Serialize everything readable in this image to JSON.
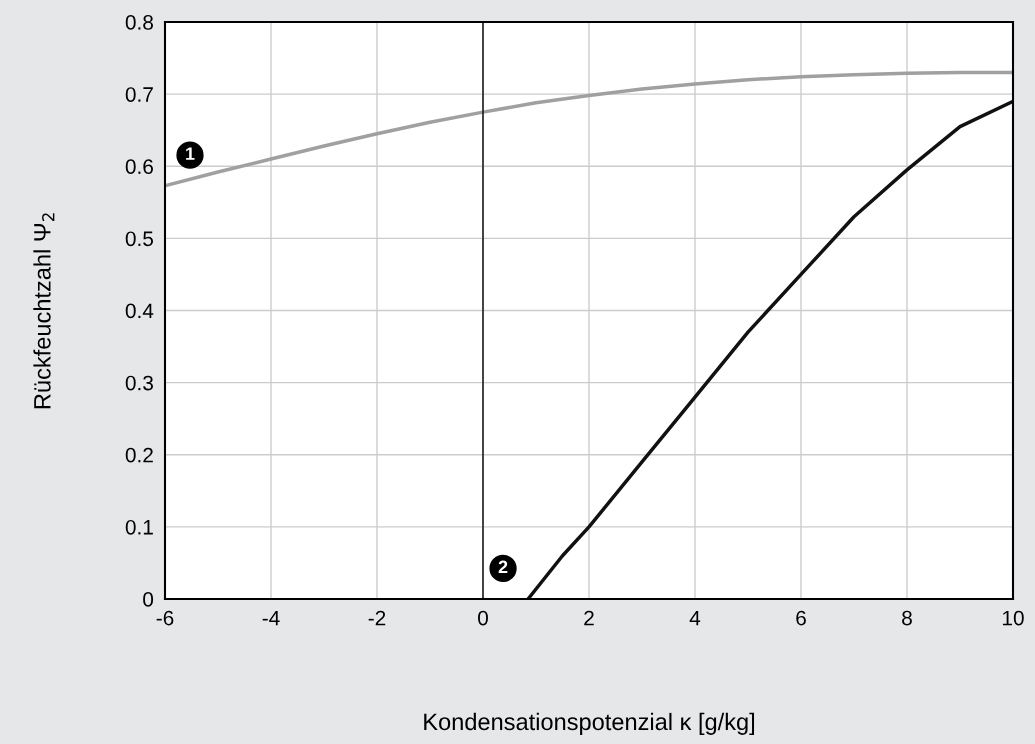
{
  "chart_data": {
    "type": "line",
    "xlabel": "Kondensationspotenzial κ [g/kg]",
    "ylabel": "Rückfeuchtzahl Ψ$_{2}$",
    "series": [
      {
        "name": "1",
        "color": "#a0a0a0",
        "x": [
          -6,
          -5,
          -4,
          -3,
          -2,
          -1,
          0,
          1,
          2,
          3,
          4,
          5,
          6,
          7,
          8,
          9,
          10
        ],
        "values": [
          0.573,
          0.592,
          0.61,
          0.628,
          0.645,
          0.661,
          0.675,
          0.688,
          0.698,
          0.707,
          0.714,
          0.72,
          0.724,
          0.727,
          0.729,
          0.73,
          0.73
        ]
      },
      {
        "name": "2",
        "color": "#111111",
        "x": [
          0.85,
          1.5,
          2,
          3,
          4,
          5,
          6,
          7,
          8,
          9,
          10
        ],
        "values": [
          0,
          0.06,
          0.1,
          0.19,
          0.28,
          0.37,
          0.45,
          0.53,
          0.595,
          0.655,
          0.69
        ]
      }
    ],
    "xlim": [
      -6,
      10
    ],
    "xticks": [
      {
        "value": -6,
        "label": "-6"
      },
      {
        "value": -4,
        "label": "-4"
      },
      {
        "value": -2,
        "label": "-2"
      },
      0,
      2,
      4,
      6,
      8,
      10
    ],
    "ylim": [
      0,
      0.8
    ],
    "yticks": [
      0,
      0.1,
      0.2,
      0.3,
      0.4,
      0.5,
      0.6,
      0.7,
      0.8
    ],
    "ref_lines": [
      {
        "axis": "x",
        "value": 0,
        "color": "#000000"
      }
    ],
    "grid": true,
    "legend": false,
    "marker": "none",
    "line_style": "solid"
  }
}
